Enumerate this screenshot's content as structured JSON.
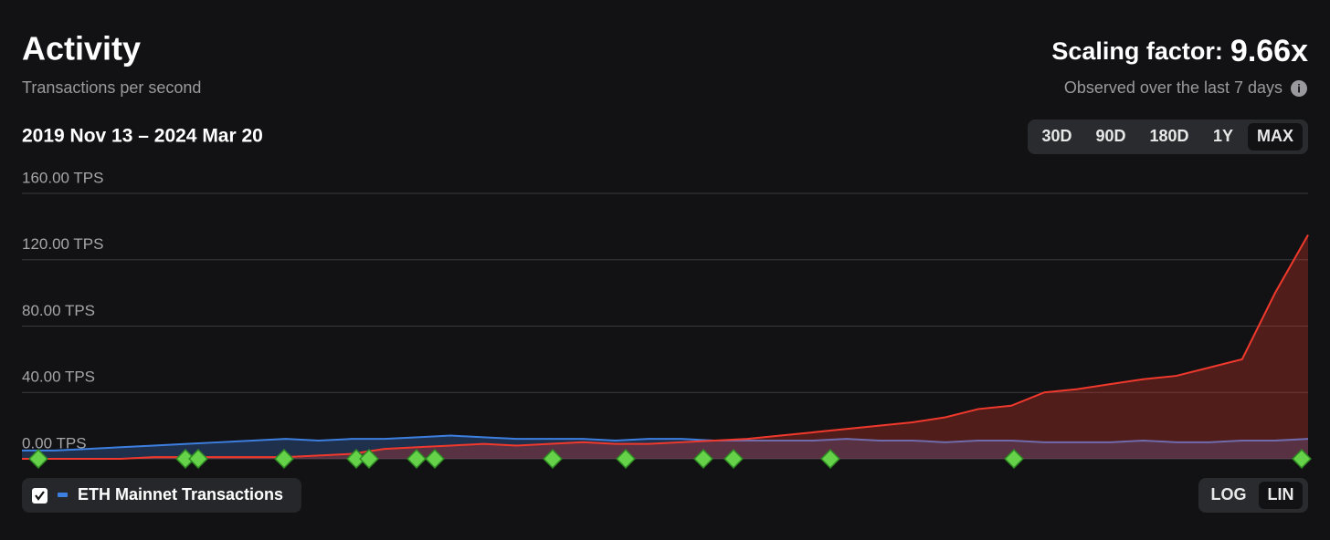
{
  "header": {
    "title": "Activity",
    "subtitle": "Transactions per second",
    "scaling_label": "Scaling factor:",
    "scaling_value": "9.66x",
    "scaling_note": "Observed over the last 7 days",
    "date_range": "2019 Nov 13 – 2024 Mar 20"
  },
  "range_buttons": [
    "30D",
    "90D",
    "180D",
    "1Y",
    "MAX"
  ],
  "scale_buttons": [
    "LOG",
    "LIN"
  ],
  "chart_data": {
    "type": "area",
    "ylim": [
      0,
      160
    ],
    "yticks": [
      {
        "value": 0,
        "label": "0.00 TPS"
      },
      {
        "value": 40,
        "label": "40.00 TPS"
      },
      {
        "value": 80,
        "label": "80.00 TPS"
      },
      {
        "value": 120,
        "label": "120.00 TPS"
      },
      {
        "value": 160,
        "label": "160.00 TPS"
      }
    ],
    "grid": true,
    "series": [
      {
        "name": "ETH Mainnet Transactions",
        "color": "#3d7fe0",
        "values": [
          5,
          5,
          6,
          7,
          8,
          9,
          10,
          11,
          12,
          11,
          12,
          12,
          13,
          14,
          13,
          12,
          12,
          12,
          11,
          12,
          12,
          11,
          11,
          11,
          11,
          12,
          11,
          11,
          10,
          11,
          11,
          10,
          10,
          10,
          11,
          10,
          10,
          11,
          11,
          12
        ]
      },
      {
        "color": "#f0392c",
        "values": [
          0,
          0,
          0,
          0,
          1,
          1,
          1,
          1,
          1,
          2,
          3,
          6,
          7,
          8,
          9,
          8,
          9,
          10,
          9,
          9,
          10,
          11,
          12,
          14,
          16,
          18,
          20,
          22,
          25,
          30,
          32,
          40,
          42,
          45,
          48,
          50,
          55,
          60,
          100,
          135
        ]
      }
    ]
  }
}
